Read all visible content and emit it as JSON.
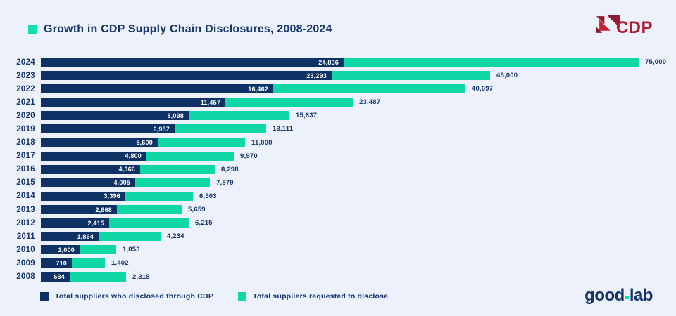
{
  "page": {
    "background": "#EDF1FB"
  },
  "header": {
    "title": "Growth in CDP Supply Chain Disclosures, 2008-2024",
    "title_color": "#16356C",
    "bullet_color": "#10DFAC",
    "cdp_logo": {
      "text": "CDP",
      "text_color": "#B01E35",
      "mark_dark": "#8E1D33",
      "mark_bright": "#C22237"
    }
  },
  "chart_data": {
    "type": "bar",
    "orientation": "horizontal",
    "title": "Growth in CDP Supply Chain Disclosures, 2008-2024",
    "categories": [
      "2024",
      "2023",
      "2022",
      "2021",
      "2020",
      "2019",
      "2018",
      "2017",
      "2016",
      "2015",
      "2014",
      "2013",
      "2012",
      "2011",
      "2010",
      "2009",
      "2008"
    ],
    "series": [
      {
        "name": "Total suppliers who disclosed through CDP",
        "color": "#0E3266",
        "values": [
          24836,
          23293,
          16462,
          11457,
          8098,
          6957,
          5600,
          4800,
          4366,
          4005,
          3396,
          2868,
          2415,
          1864,
          1000,
          710,
          634
        ]
      },
      {
        "name": "Total suppliers requested to disclose",
        "color": "#0FD7A6",
        "values": [
          75000,
          45000,
          40697,
          23487,
          15637,
          13111,
          11000,
          9970,
          8298,
          7879,
          6503,
          5659,
          6215,
          4234,
          1853,
          1402,
          2318
        ]
      }
    ],
    "rows": [
      {
        "year": "2024",
        "disclosed_label": "24,836",
        "requested_label": "75,000"
      },
      {
        "year": "2023",
        "disclosed_label": "23,293",
        "requested_label": "45,000"
      },
      {
        "year": "2022",
        "disclosed_label": "16,462",
        "requested_label": "40,697"
      },
      {
        "year": "2021",
        "disclosed_label": "11,457",
        "requested_label": "23,487"
      },
      {
        "year": "2020",
        "disclosed_label": "8,098",
        "requested_label": "15,637"
      },
      {
        "year": "2019",
        "disclosed_label": "6,957",
        "requested_label": "13,111"
      },
      {
        "year": "2018",
        "disclosed_label": "5,600",
        "requested_label": "11,000"
      },
      {
        "year": "2017",
        "disclosed_label": "4,800",
        "requested_label": "9,970"
      },
      {
        "year": "2016",
        "disclosed_label": "4,366",
        "requested_label": "8,298"
      },
      {
        "year": "2015",
        "disclosed_label": "4,005",
        "requested_label": "7,879"
      },
      {
        "year": "2014",
        "disclosed_label": "3,396",
        "requested_label": "6,503"
      },
      {
        "year": "2013",
        "disclosed_label": "2,868",
        "requested_label": "5,659"
      },
      {
        "year": "2012",
        "disclosed_label": "2,415",
        "requested_label": "6,215"
      },
      {
        "year": "2011",
        "disclosed_label": "1,864",
        "requested_label": "4,234"
      },
      {
        "year": "2010",
        "disclosed_label": "1,000",
        "requested_label": "1,853"
      },
      {
        "year": "2009",
        "disclosed_label": "710",
        "requested_label": "1,402"
      },
      {
        "year": "2008",
        "disclosed_label": "634",
        "requested_label": "2,318"
      }
    ],
    "value_labels": "disclosed value shown in white inside navy bar; requested total shown in navy to the right of teal bar",
    "legend_position": "bottom-left",
    "grid": false,
    "axis_ticks": "none"
  },
  "legend": {
    "items": [
      {
        "label": "Total suppliers who disclosed through CDP",
        "color": "#0E3266"
      },
      {
        "label": "Total suppliers requested to disclose",
        "color": "#0FD7A6"
      }
    ]
  },
  "footer_logo": {
    "text_primary": "good",
    "text_secondary": "lab",
    "color": "#16356C",
    "dot_color": "#10DFAC"
  }
}
